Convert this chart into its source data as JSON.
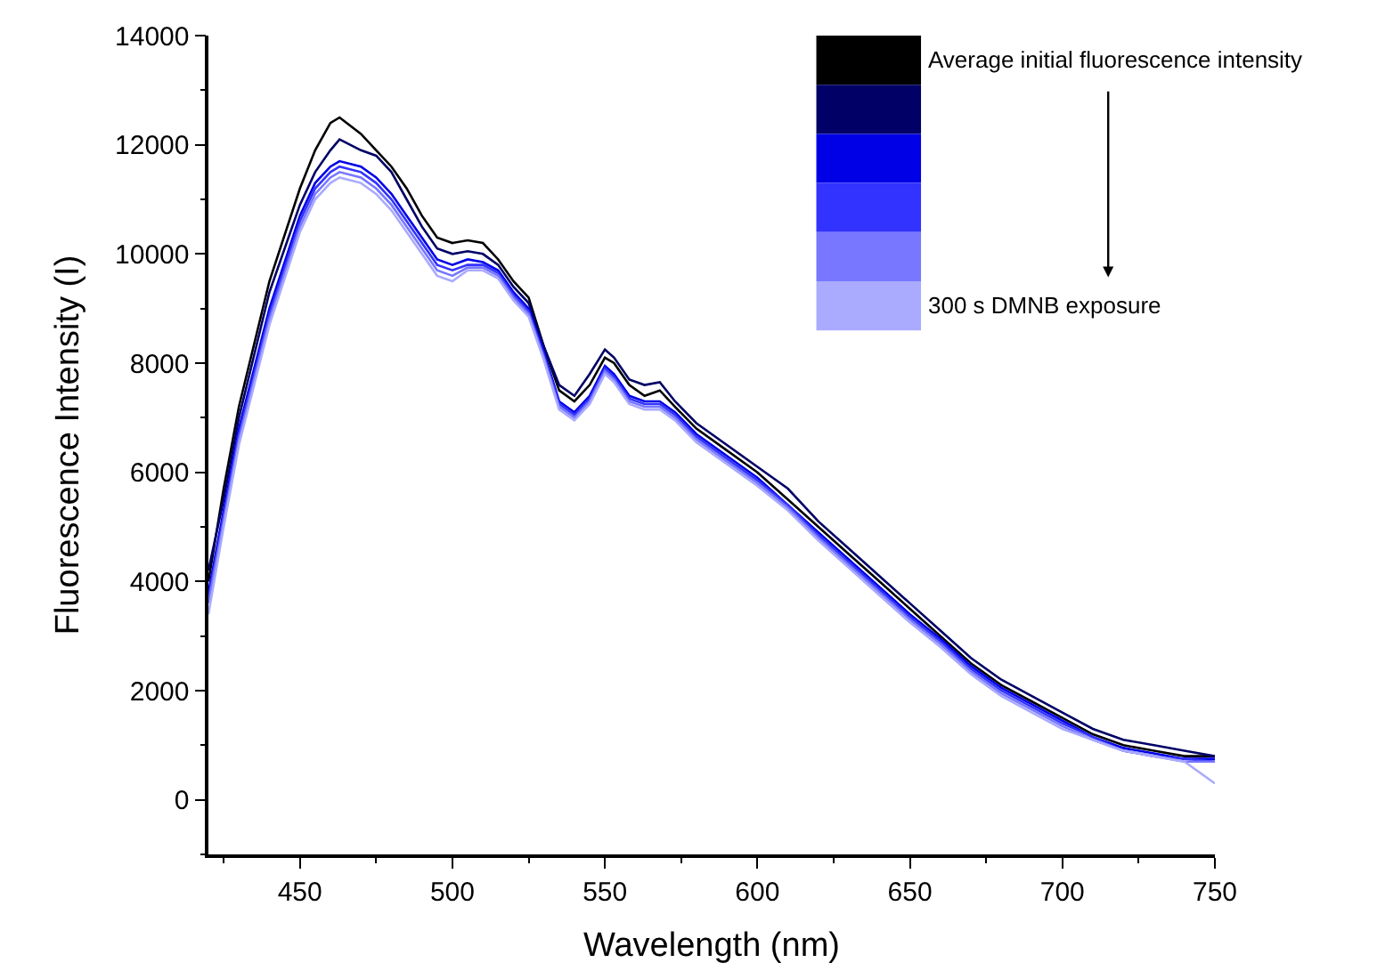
{
  "chart_data": {
    "type": "line",
    "xlabel": "Wavelength (nm)",
    "ylabel": "Fluorescence Intensity (I)",
    "x": [
      420,
      425,
      430,
      440,
      450,
      455,
      460,
      463,
      470,
      475,
      480,
      485,
      490,
      495,
      500,
      505,
      510,
      515,
      520,
      525,
      530,
      535,
      540,
      545,
      550,
      553,
      558,
      563,
      568,
      573,
      580,
      590,
      600,
      610,
      620,
      630,
      640,
      650,
      660,
      670,
      680,
      690,
      700,
      710,
      720,
      730,
      740,
      750
    ],
    "series": [
      {
        "name": "Average initial fluorescence intensity",
        "color": "#000000",
        "values": [
          4000,
          5700,
          7200,
          9500,
          11200,
          11900,
          12400,
          12500,
          12200,
          11900,
          11600,
          11200,
          10700,
          10300,
          10200,
          10250,
          10200,
          9900,
          9500,
          9200,
          8300,
          7500,
          7300,
          7600,
          8100,
          8000,
          7600,
          7400,
          7500,
          7200,
          6800,
          6400,
          6000,
          5500,
          5000,
          4500,
          4000,
          3500,
          3000,
          2500,
          2100,
          1800,
          1500,
          1200,
          1000,
          900,
          800,
          800
        ]
      },
      {
        "color": "#000066",
        "values": [
          4200,
          5500,
          7000,
          9300,
          10900,
          11500,
          11900,
          12100,
          11900,
          11800,
          11500,
          11000,
          10500,
          10100,
          10000,
          10050,
          10000,
          9800,
          9400,
          9100,
          8300,
          7600,
          7400,
          7800,
          8250,
          8100,
          7700,
          7600,
          7650,
          7300,
          6900,
          6500,
          6100,
          5700,
          5100,
          4600,
          4100,
          3600,
          3100,
          2600,
          2200,
          1900,
          1600,
          1300,
          1100,
          1000,
          900,
          800
        ]
      },
      {
        "color": "#0000e6",
        "values": [
          3800,
          5300,
          6800,
          9000,
          10700,
          11300,
          11600,
          11700,
          11600,
          11400,
          11100,
          10700,
          10300,
          9900,
          9800,
          9900,
          9850,
          9700,
          9300,
          9000,
          8200,
          7300,
          7100,
          7400,
          7950,
          7800,
          7400,
          7300,
          7300,
          7100,
          6700,
          6300,
          5900,
          5400,
          4900,
          4400,
          3900,
          3400,
          2950,
          2450,
          2050,
          1750,
          1450,
          1150,
          950,
          850,
          750,
          750
        ]
      },
      {
        "color": "#3333ff",
        "values": [
          3700,
          5200,
          6700,
          8900,
          10600,
          11200,
          11500,
          11600,
          11500,
          11300,
          11000,
          10600,
          10200,
          9800,
          9700,
          9800,
          9800,
          9650,
          9250,
          8950,
          8150,
          7250,
          7050,
          7350,
          7900,
          7750,
          7350,
          7250,
          7250,
          7050,
          6650,
          6250,
          5850,
          5400,
          4850,
          4350,
          3850,
          3350,
          2900,
          2400,
          2000,
          1700,
          1400,
          1150,
          900,
          800,
          750,
          700
        ]
      },
      {
        "color": "#7777ff",
        "values": [
          3600,
          5100,
          6600,
          8800,
          10500,
          11100,
          11400,
          11500,
          11400,
          11200,
          10900,
          10500,
          10100,
          9700,
          9600,
          9750,
          9750,
          9600,
          9200,
          8900,
          8100,
          7200,
          7000,
          7300,
          7850,
          7700,
          7300,
          7200,
          7200,
          7000,
          6600,
          6200,
          5800,
          5350,
          4800,
          4300,
          3800,
          3300,
          2850,
          2350,
          1950,
          1650,
          1350,
          1100,
          900,
          800,
          700,
          700
        ]
      },
      {
        "name": "300 s DMNB exposure",
        "color": "#aaaaff",
        "values": [
          3400,
          5000,
          6500,
          8700,
          10400,
          11000,
          11300,
          11400,
          11300,
          11100,
          10800,
          10400,
          10000,
          9600,
          9500,
          9700,
          9700,
          9550,
          9150,
          8850,
          8050,
          7150,
          6950,
          7250,
          7800,
          7650,
          7250,
          7150,
          7150,
          6950,
          6550,
          6150,
          5750,
          5300,
          4750,
          4250,
          3750,
          3250,
          2800,
          2300,
          1900,
          1600,
          1300,
          1100,
          900,
          800,
          700,
          300
        ]
      }
    ],
    "xlim": [
      420,
      750
    ],
    "xticks": [
      450,
      500,
      550,
      600,
      650,
      700,
      750
    ],
    "ylim": [
      -1000,
      14000
    ],
    "yticks": [
      0,
      2000,
      4000,
      6000,
      8000,
      10000,
      12000,
      14000
    ],
    "legend": "top right",
    "marker": "none",
    "line_style": "solid"
  }
}
